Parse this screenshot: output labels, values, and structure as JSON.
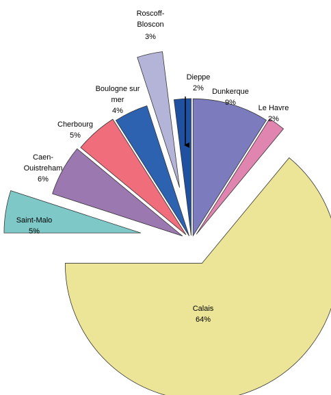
{
  "chart_data": {
    "type": "pie",
    "categories": [
      "Dunkerque",
      "Le Havre",
      "Calais",
      "Saint-Malo",
      "Caen-Ouistreham",
      "Cherbourg",
      "Boulogne sur mer",
      "Roscoff-Bloscon",
      "Dieppe"
    ],
    "values": [
      9,
      2,
      64,
      5,
      6,
      5,
      4,
      3,
      2
    ],
    "value_labels": [
      "9%",
      "2%",
      "64%",
      "5%",
      "6%",
      "5%",
      "4%",
      "3%",
      "2%"
    ],
    "colors": [
      "#7b7bbd",
      "#e085b0",
      "#ece496",
      "#7ec8c8",
      "#9c78b0",
      "#f06e7c",
      "#2c62b0",
      "#b4b4d8",
      "#2050a0"
    ]
  }
}
